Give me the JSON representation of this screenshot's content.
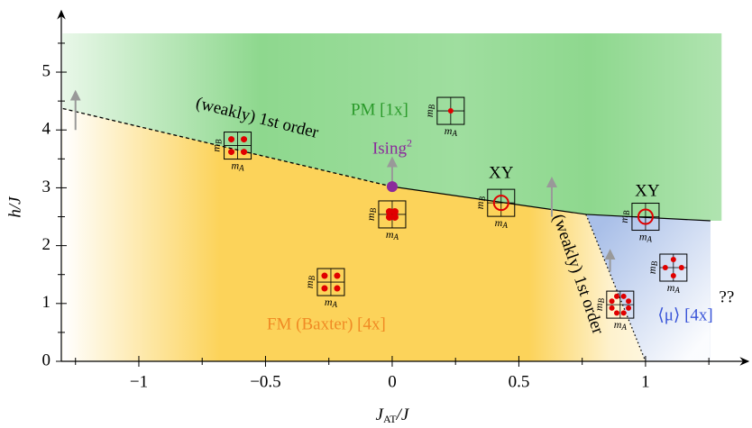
{
  "chart_data": {
    "type": "phase-diagram",
    "x_label": {
      "main": "J",
      "sub": "AT",
      "rest": "/J"
    },
    "y_label": "h/J",
    "xlim": [
      -1.306,
      1.406
    ],
    "ylim": [
      0,
      6.06
    ],
    "xticks": [
      {
        "value": -1,
        "label": "−1"
      },
      {
        "value": -0.5,
        "label": "−0.5"
      },
      0,
      0.5,
      1
    ],
    "xticks_minor": [
      -1.25,
      -0.75,
      -0.25,
      0.25,
      0.75,
      1.25
    ],
    "yticks": [
      0,
      1,
      2,
      3,
      4,
      5
    ],
    "yticks_minor": [
      0.5,
      1.5,
      2.5,
      3.5,
      4.5,
      5.5
    ],
    "boundaries": [
      {
        "style": "dashed",
        "x": [
          -1.3,
          0
        ],
        "values": [
          4.37,
          3.02
        ]
      },
      {
        "style": "solid",
        "x": [
          0,
          0.765,
          1.256
        ],
        "values": [
          3.02,
          2.54,
          2.43
        ]
      },
      {
        "style": "dotted",
        "x": [
          0.765,
          1.0
        ],
        "values": [
          2.54,
          0
        ]
      }
    ],
    "regions": {
      "shade_top": 5.67,
      "shade_left": -1.3,
      "shade_right": 1.3,
      "pm_color": "#8ed88e",
      "fm_color": "#fcd35a",
      "mu_color": "#a9bfe8"
    },
    "point": {
      "x": 0,
      "y": 3.02,
      "color": "#8b2a9b",
      "label": {
        "main": "Ising",
        "sup": "2"
      },
      "label_y": 3.5
    },
    "arrows": [
      {
        "x": -1.25,
        "y": [
          4.0,
          4.6
        ]
      },
      {
        "x": 0,
        "y": [
          3.02,
          3.45
        ]
      },
      {
        "x": 0.63,
        "y": [
          2.5,
          3.1
        ]
      },
      {
        "x": 0.86,
        "y": [
          1.55,
          1.85
        ]
      }
    ],
    "labels": [
      {
        "text": "PM [1x]",
        "x": -0.05,
        "y": 4.33,
        "color": "#2a9a2a",
        "rotate": 0
      },
      {
        "text": "FM (Baxter) [4x]",
        "x": -0.26,
        "y": 0.62,
        "color": "#f08a24",
        "rotate": 0
      },
      {
        "text": "⟨μ⟩ [4x]",
        "x": 1.157,
        "y": 0.78,
        "color": "#3a55d8",
        "rotate": 0
      },
      {
        "text": "??",
        "x": 1.32,
        "y": 1.09,
        "color": "#000000",
        "rotate": 0
      },
      {
        "text": "XY",
        "x": 0.43,
        "y": 3.24,
        "color": "#000000",
        "rotate": 0
      },
      {
        "text": "XY",
        "x": 1.007,
        "y": 2.93,
        "color": "#000000",
        "rotate": 0
      },
      {
        "text": "(weakly) 1st order",
        "x": -0.534,
        "y": 4.19,
        "color": "#000000",
        "rotate": 14
      },
      {
        "text": "(weakly) 1st order",
        "x": 0.73,
        "y": 1.5,
        "color": "#000000",
        "rotate": 71
      }
    ],
    "icons": [
      {
        "kind": "four",
        "x": -0.61,
        "y": 3.73
      },
      {
        "kind": "center",
        "x": 0.231,
        "y": 4.33
      },
      {
        "kind": "cluster",
        "x": 0,
        "y": 2.54
      },
      {
        "kind": "ring",
        "x": 0.43,
        "y": 2.74
      },
      {
        "kind": "ring",
        "x": 1.0,
        "y": 2.5
      },
      {
        "kind": "cross",
        "x": 1.11,
        "y": 1.62
      },
      {
        "kind": "ring8",
        "x": 0.9,
        "y": 0.98
      },
      {
        "kind": "four",
        "x": -0.242,
        "y": 1.37
      }
    ],
    "icon_text": {
      "m": "m",
      "a": "A",
      "b": "B"
    }
  }
}
